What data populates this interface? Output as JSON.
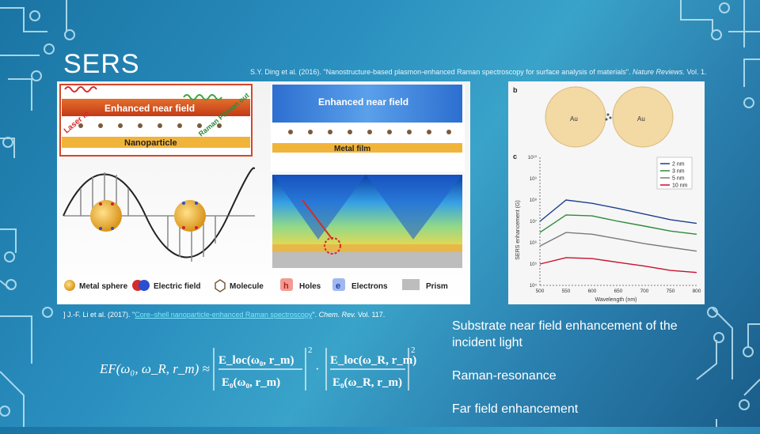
{
  "slide": {
    "title": "SERS",
    "top_citation": {
      "text": "S.Y. Ding et al. (2016). \"Nanostructure-based plasmon-enhanced Raman spectroscopy for surface analysis of materials\". ",
      "journal": "Nature Reviews.",
      "volume": " Vol. 1."
    },
    "bottom_citation": {
      "prefix": "] J.-F. Li et al. (2017). \"",
      "link": "Core–shell nanoparticle-enhanced Raman spectroscopy",
      "suffix": "\". ",
      "journal": "Chem. Rev.",
      "volume": " Vol. 117."
    },
    "formula": {
      "lhs": "EF(ω₀, ω_R, r_m) ≈",
      "num1": "E_loc(ω₀, r_m)",
      "den1": "E₀(ω₀, r_m)",
      "num2": "E_loc(ω_R, r_m)",
      "den2": "E₀(ω_R, r_m)",
      "exp": "2"
    },
    "bullets": [
      "Substrate near field enhancement of the incident light",
      "Raman-resonance",
      "Far field enhancement"
    ]
  },
  "figure_left": {
    "label_near_field_1": "Enhanced near field",
    "label_near_field_2": "Enhanced near field",
    "label_laser": "Laser in",
    "label_raman": "Raman Photon out",
    "label_nanoparticle": "Nanoparticle",
    "label_metal_film": "Metal film",
    "legend": {
      "metal_sphere": "Metal sphere",
      "electric_field": "Electric field",
      "molecule": "Molecule",
      "holes_symbol": "h",
      "holes": "Holes",
      "electrons_symbol": "e",
      "electrons": "Electrons",
      "prism": "Prism"
    }
  },
  "figure_right": {
    "panel_b": "b",
    "panel_c": "c",
    "au_left": "Au",
    "au_right": "Au",
    "ylabel": "SERS enhancement (G)",
    "xlabel": "Wavelength (nm)",
    "colors": {
      "2 nm": "#1b3f8b",
      "3 nm": "#2e8b3a",
      "5 nm": "#7a7a7a",
      "10 nm": "#c8102e"
    },
    "chart_data": {
      "type": "line",
      "x": [
        500,
        550,
        600,
        650,
        700,
        750,
        800
      ],
      "series": [
        {
          "name": "2 nm",
          "values": [
            10000000,
            100000000,
            70000000,
            40000000,
            22000000,
            12000000,
            8000000
          ]
        },
        {
          "name": "3 nm",
          "values": [
            3000000,
            20000000,
            18000000,
            10000000,
            6000000,
            3500000,
            2500000
          ]
        },
        {
          "name": "5 nm",
          "values": [
            700000,
            3000000,
            2500000,
            1500000,
            900000,
            600000,
            400000
          ]
        },
        {
          "name": "10 nm",
          "values": [
            100000,
            200000,
            180000,
            120000,
            80000,
            50000,
            40000
          ]
        }
      ],
      "xlabel": "Wavelength (nm)",
      "ylabel": "SERS enhancement (G)",
      "xticks": [
        500,
        550,
        600,
        650,
        700,
        750,
        800
      ],
      "yticks_exp": [
        4,
        5,
        6,
        7,
        8,
        9,
        10
      ],
      "ylim": [
        10000,
        10000000000
      ],
      "log_y": true,
      "legend_position": "top-right"
    }
  }
}
